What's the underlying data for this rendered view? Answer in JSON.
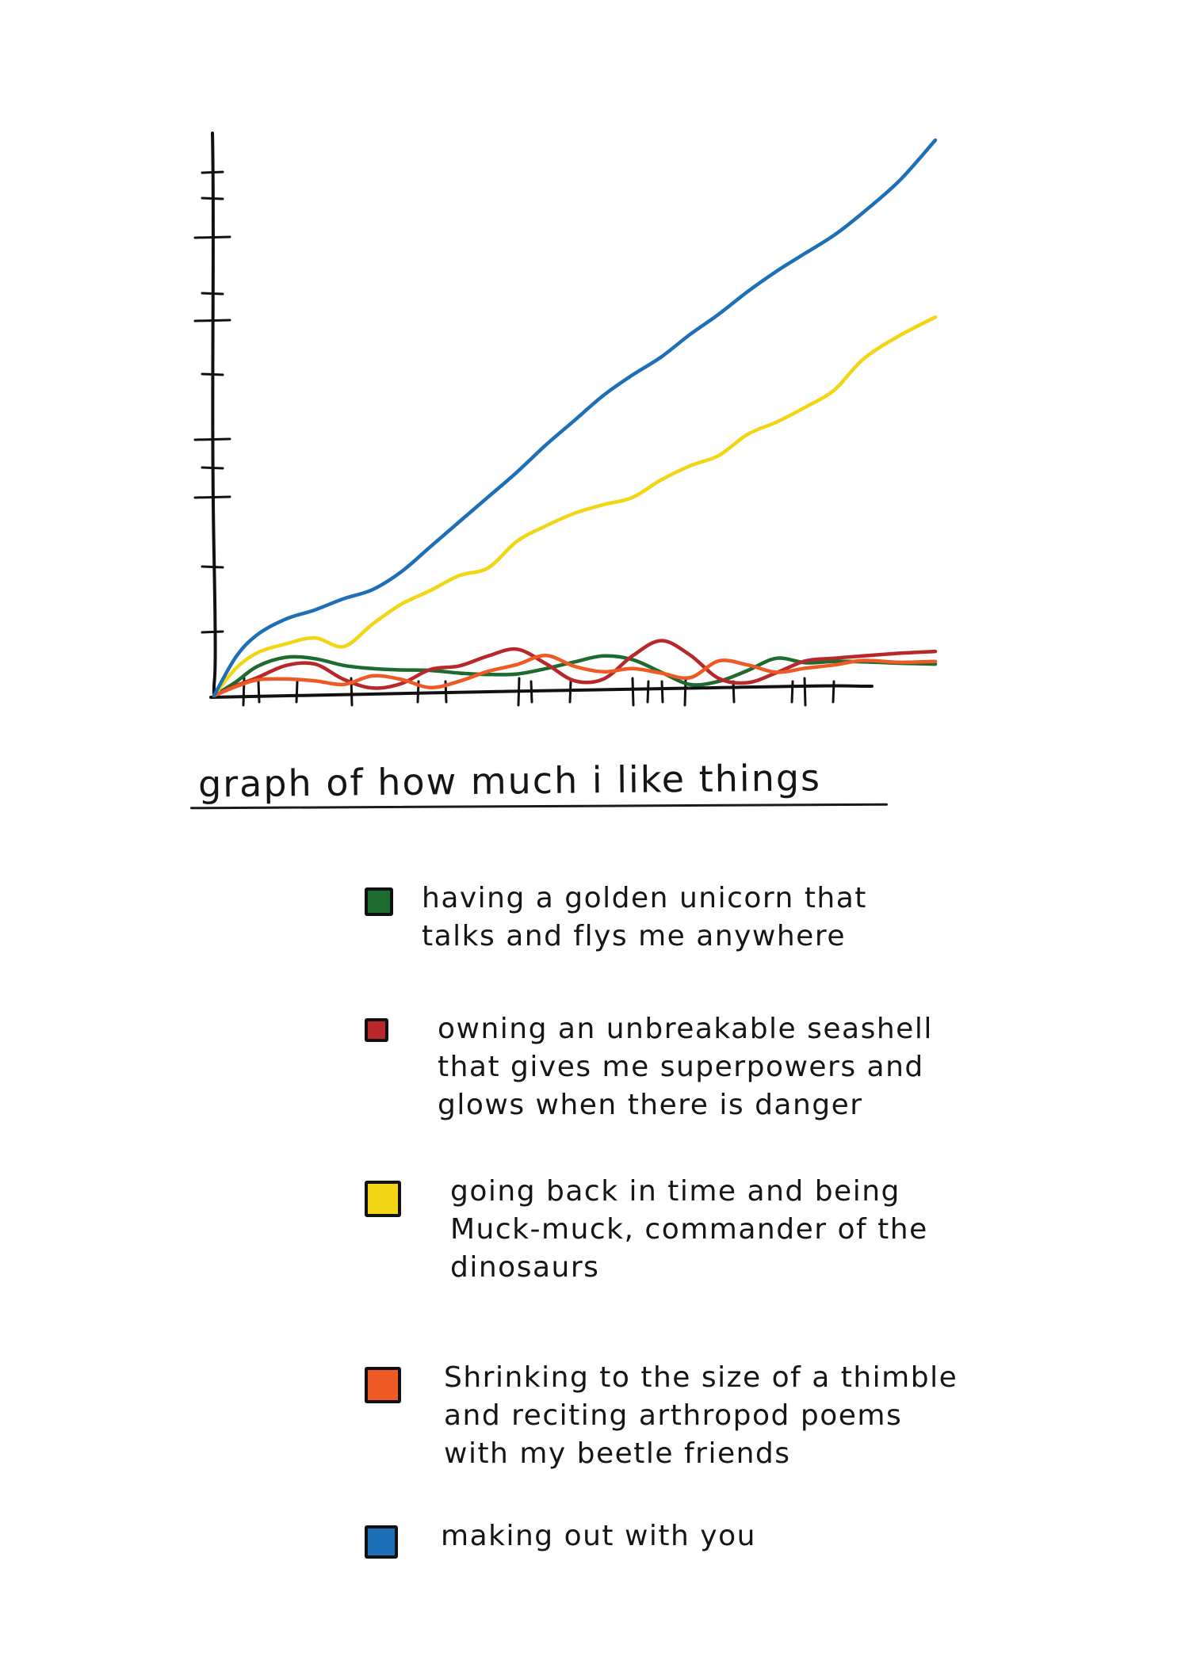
{
  "chart_data": {
    "type": "line",
    "title": "graph of how much i like things",
    "xlabel": "",
    "ylabel": "",
    "grid": false,
    "legend_position": "bottom",
    "series": [
      {
        "name": "having a golden unicorn that talks and flys me anywhere",
        "color": "#1e6b2f",
        "x": [
          0,
          3,
          6,
          10,
          14,
          18,
          22,
          26,
          30,
          34,
          38,
          42,
          46,
          50,
          54,
          58,
          62,
          66,
          70,
          74,
          78,
          82,
          86,
          90,
          95,
          100
        ],
        "y": [
          0,
          3,
          6.5,
          8.5,
          8.2,
          6.7,
          6,
          5.7,
          5.6,
          5,
          4.7,
          4.8,
          6,
          7.5,
          8.8,
          8,
          5.2,
          2.5,
          3.2,
          5.6,
          8.3,
          7.3,
          7.6,
          7.5,
          7.2,
          7
        ]
      },
      {
        "name": "owning an unbreakable seashell that gives me superpowers and glows when there is danger",
        "color": "#b8282a",
        "x": [
          0,
          3,
          6,
          10,
          14,
          18,
          22,
          26,
          30,
          34,
          38,
          42,
          46,
          50,
          54,
          58,
          62,
          66,
          70,
          74,
          78,
          82,
          86,
          90,
          95,
          100
        ],
        "y": [
          0,
          2.2,
          4,
          6.7,
          7,
          3.6,
          1.7,
          2.7,
          5.8,
          6.6,
          8.8,
          10.3,
          7.1,
          3.3,
          3.7,
          8.8,
          12.2,
          9,
          3.8,
          2.9,
          5.1,
          7.7,
          8.3,
          8.8,
          9.4,
          9.8
        ]
      },
      {
        "name": "going back in time and being Muck-muck, commander of the dinosaurs",
        "color": "#f2d514",
        "x": [
          0,
          3,
          6,
          10,
          14,
          18,
          22,
          26,
          30,
          34,
          38,
          42,
          46,
          50,
          54,
          58,
          62,
          66,
          70,
          74,
          78,
          82,
          86,
          90,
          95,
          100
        ],
        "y": [
          0,
          6,
          9.5,
          11.5,
          12.8,
          10.9,
          15.9,
          20.3,
          23.3,
          26.6,
          28.3,
          34.2,
          37.6,
          40.4,
          42.3,
          43.9,
          47.8,
          50.9,
          53.2,
          57.9,
          60.6,
          63.9,
          67.7,
          74.5,
          79.7,
          83.8
        ]
      },
      {
        "name": "Shrinking to the size of a thimble and reciting arthropod poems with my beetle friends",
        "color": "#ee5a24",
        "x": [
          0,
          3,
          6,
          10,
          14,
          18,
          22,
          26,
          30,
          34,
          38,
          42,
          46,
          50,
          54,
          58,
          62,
          66,
          70,
          74,
          78,
          82,
          86,
          90,
          95,
          100
        ],
        "y": [
          0,
          2,
          3.5,
          3.7,
          3.3,
          2.5,
          4.4,
          3.6,
          1.8,
          3.2,
          5.4,
          6.9,
          8.9,
          6.5,
          5.3,
          6,
          5,
          4,
          7.7,
          6.8,
          5.2,
          6.1,
          6.8,
          7.8,
          7.4,
          7.6
        ]
      },
      {
        "name": "making out with you",
        "color": "#1d6fb8",
        "x": [
          0,
          3,
          6,
          10,
          14,
          18,
          22,
          26,
          30,
          34,
          38,
          42,
          46,
          50,
          54,
          58,
          62,
          66,
          70,
          74,
          78,
          82,
          86,
          90,
          95,
          100
        ],
        "y": [
          0,
          8.5,
          13.5,
          17,
          19,
          21.5,
          23.5,
          27.5,
          33,
          38.5,
          44,
          49.5,
          55.5,
          61,
          66.5,
          71,
          75,
          80,
          84.5,
          89.5,
          94,
          98,
          102,
          107,
          114,
          123
        ]
      }
    ]
  },
  "legend": [
    {
      "text": "having a golden unicorn that\ntalks and flys me anywhere",
      "color": "#1e6b2f"
    },
    {
      "text": "owning an unbreakable seashell\nthat gives me superpowers and\nglows when there is danger",
      "color": "#b8282a"
    },
    {
      "text": "going back in time and being\nMuck-muck, commander of the\ndinosaurs",
      "color": "#f2d514"
    },
    {
      "text": "Shrinking to the size of a thimble\nand reciting arthropod poems\nwith my beetle friends",
      "color": "#ee5a24"
    },
    {
      "text": "making out with you",
      "color": "#1d6fb8"
    }
  ]
}
